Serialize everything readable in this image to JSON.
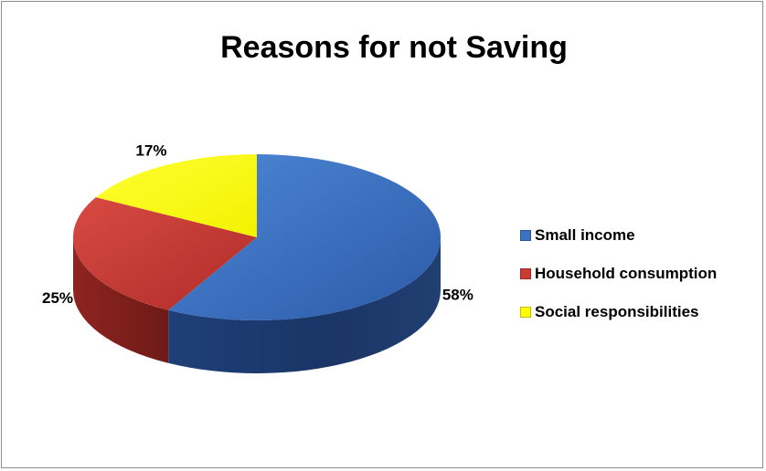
{
  "chart_data": {
    "type": "pie",
    "title": "Reasons for not Saving",
    "categories": [
      "Small income",
      "Household consumption",
      "Social responsibilities"
    ],
    "values": [
      58,
      25,
      17
    ],
    "data_labels": [
      "58%",
      "25%",
      "17%"
    ],
    "colors": [
      "#3a72c4",
      "#cc3a36",
      "#ffff00"
    ],
    "legend_position": "right",
    "style": "3d"
  }
}
